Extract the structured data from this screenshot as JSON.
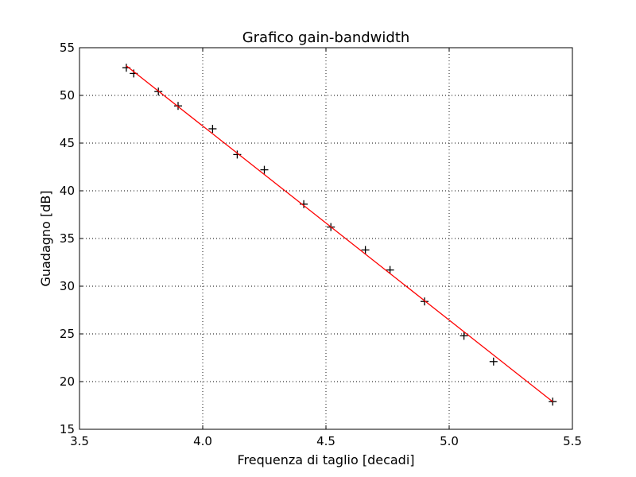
{
  "chart_data": {
    "type": "scatter",
    "title": "Grafico gain-bandwidth",
    "xlabel": "Frequenza di taglio [decadi]",
    "ylabel": "Guadagno [dB]",
    "xlim": [
      3.5,
      5.5
    ],
    "ylim": [
      15,
      55
    ],
    "xticks": [
      3.5,
      4.0,
      4.5,
      5.0,
      5.5
    ],
    "xtick_labels": [
      "3.5",
      "4.0",
      "4.5",
      "5.0",
      "5.5"
    ],
    "yticks": [
      15,
      20,
      25,
      30,
      35,
      40,
      45,
      50,
      55
    ],
    "ytick_labels": [
      "15",
      "20",
      "25",
      "30",
      "35",
      "40",
      "45",
      "50",
      "55"
    ],
    "grid": true,
    "series": [
      {
        "kind": "scatter",
        "marker": "+",
        "color": "#000000",
        "x": [
          3.69,
          3.72,
          3.82,
          3.9,
          4.04,
          4.14,
          4.25,
          4.41,
          4.52,
          4.66,
          4.76,
          4.9,
          5.06,
          5.18,
          5.42
        ],
        "y": [
          52.9,
          52.3,
          50.4,
          48.9,
          46.5,
          43.8,
          42.2,
          38.6,
          36.2,
          33.8,
          31.7,
          28.4,
          24.8,
          22.1,
          17.9
        ]
      },
      {
        "kind": "line",
        "color": "#ff0000",
        "x": [
          3.69,
          5.42
        ],
        "y": [
          53.1,
          17.9
        ]
      }
    ]
  }
}
